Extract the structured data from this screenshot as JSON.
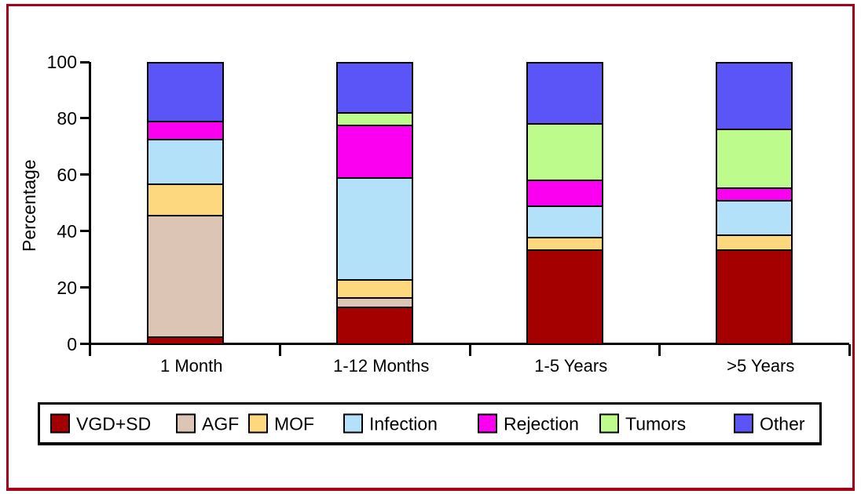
{
  "figure": {
    "border_color": "#A60019",
    "background": "#FFFFFF"
  },
  "chart_data": {
    "type": "bar",
    "stacked": true,
    "title": "",
    "xlabel": "",
    "ylabel": "Percentage",
    "ylim": [
      0,
      100
    ],
    "yticks": [
      "0",
      "20",
      "40",
      "60",
      "80",
      "100"
    ],
    "grid": false,
    "legend_position": "bottom",
    "categories": [
      "1 Month",
      "1-12 Months",
      "1-5 Years",
      ">5 Years"
    ],
    "series": [
      {
        "name": "VGD+SD",
        "color": "#A40000",
        "values": [
          2,
          13,
          34,
          34
        ]
      },
      {
        "name": "AGF",
        "color": "#DCC5B5",
        "values": [
          44,
          3,
          0,
          0
        ]
      },
      {
        "name": "MOF",
        "color": "#FDD87E",
        "values": [
          11,
          6,
          4,
          5
        ]
      },
      {
        "name": "Infection",
        "color": "#B4E1FA",
        "values": [
          16,
          37,
          11,
          12
        ]
      },
      {
        "name": "Rejection",
        "color": "#FB00F0",
        "values": [
          6,
          19,
          9,
          4
        ]
      },
      {
        "name": "Tumors",
        "color": "#BDFB8C",
        "values": [
          0,
          4,
          20,
          21
        ]
      },
      {
        "name": "Other",
        "color": "#5B55F8",
        "values": [
          21,
          18,
          22,
          24
        ]
      }
    ]
  }
}
